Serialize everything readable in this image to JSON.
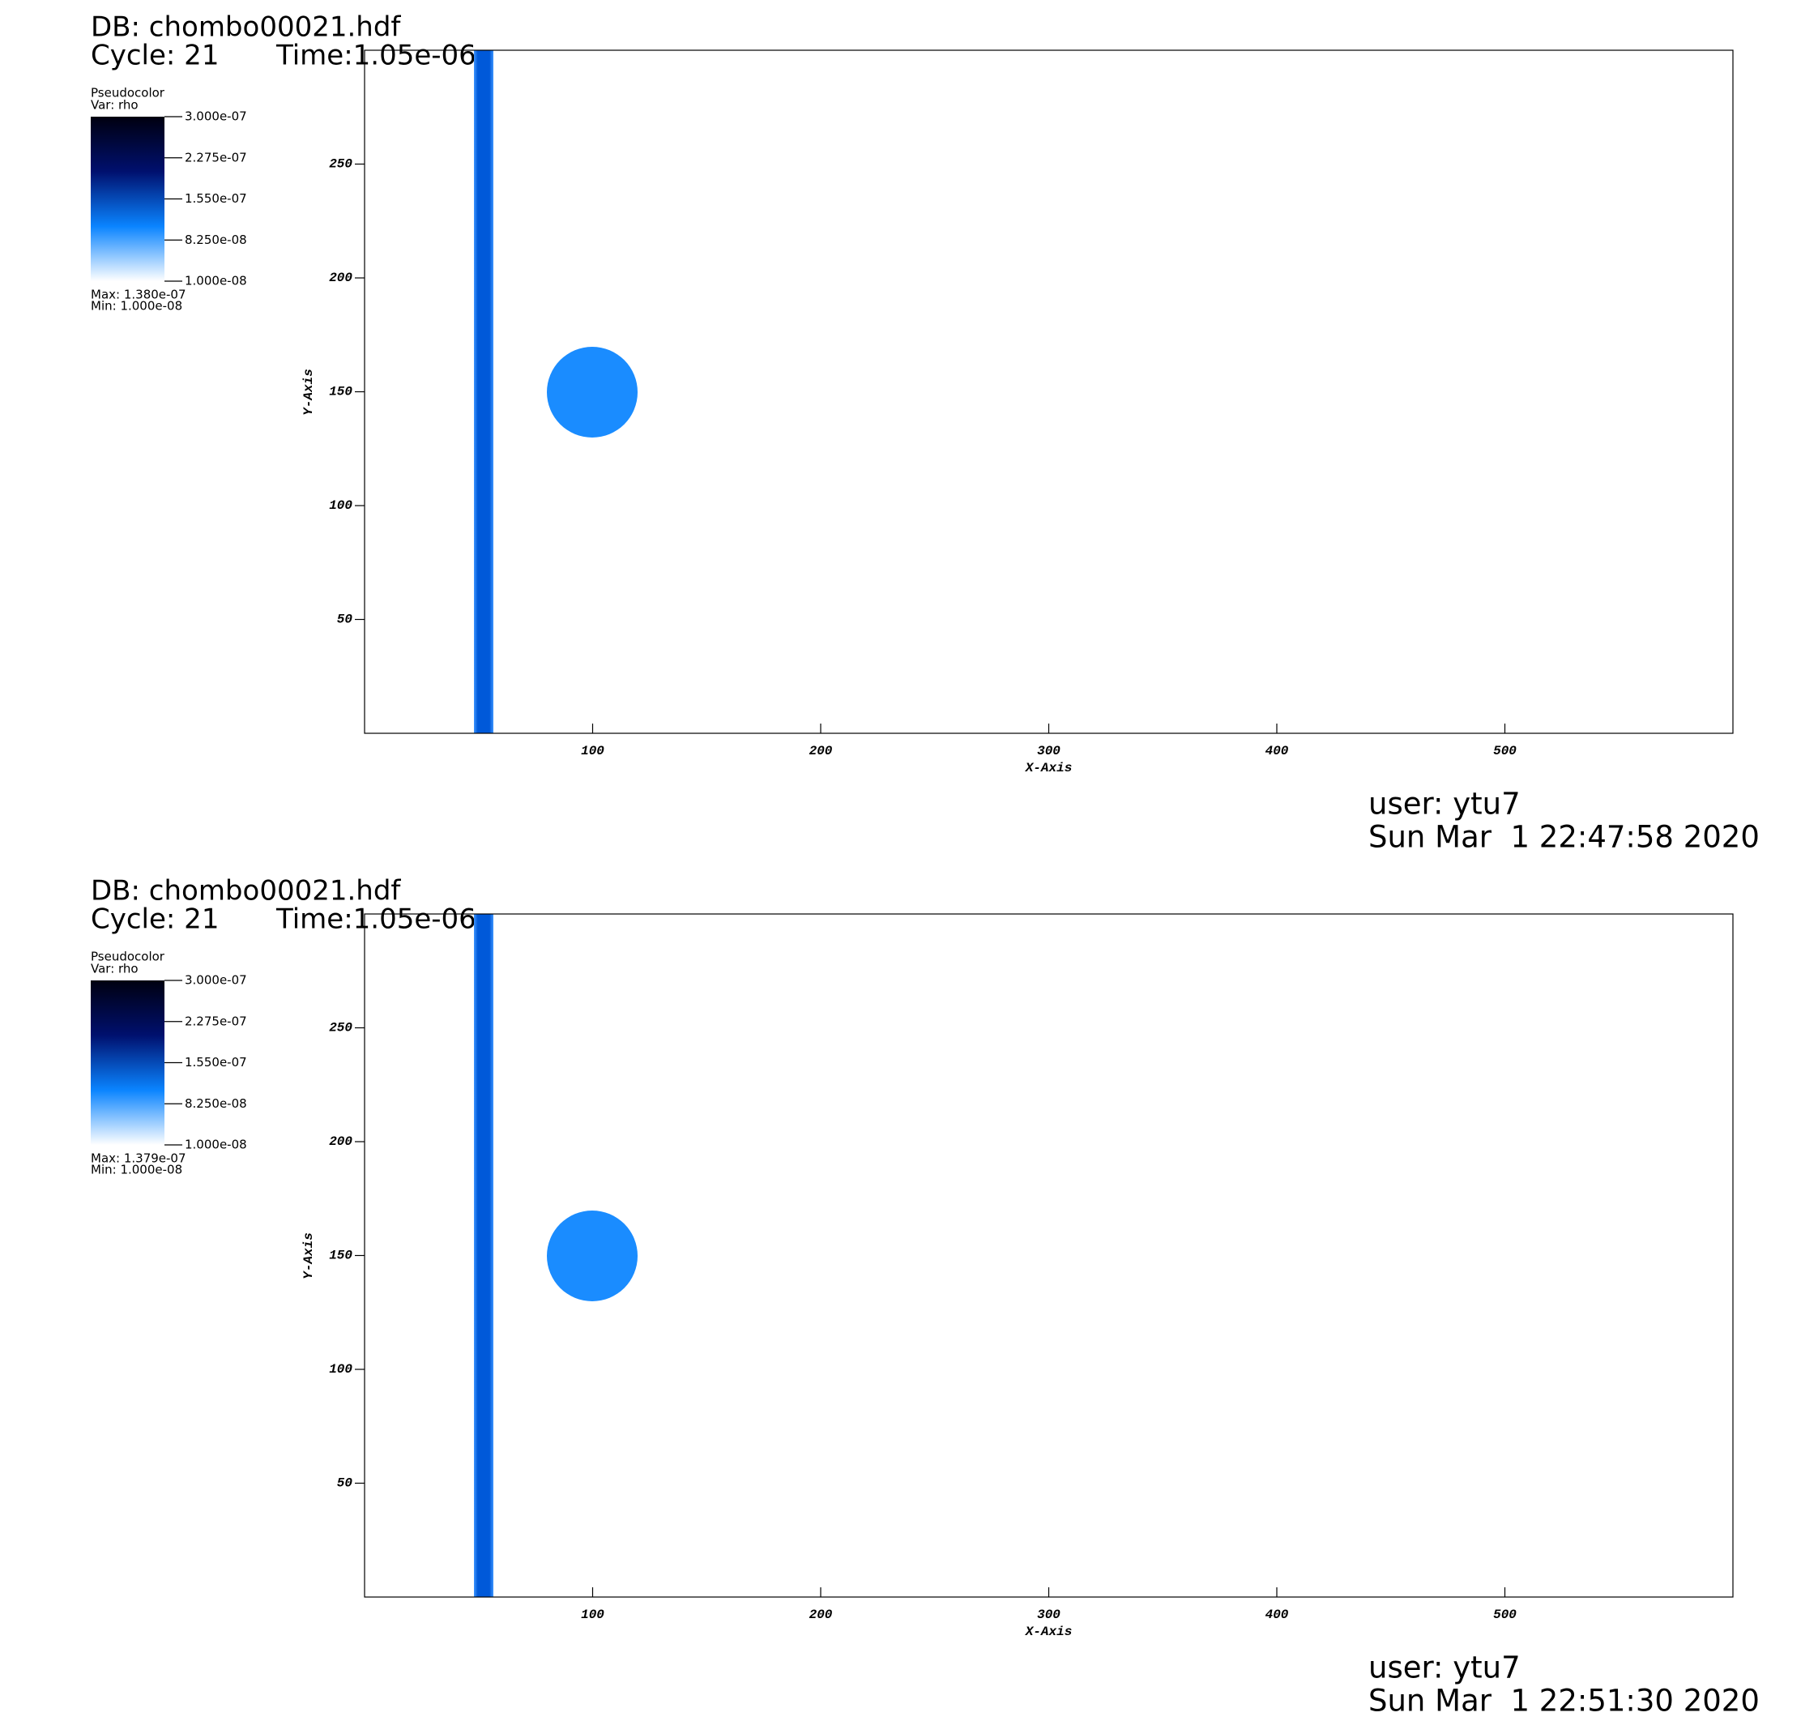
{
  "chart_data": [
    {
      "type": "pseudocolor",
      "db_label": "DB: chombo00021.hdf",
      "cycle_label": "Cycle: 21",
      "time_label": "Time:1.05e-06",
      "plot_label": "Pseudocolor",
      "var_label": "Var: rho",
      "max_label": "Max:  1.380e-07",
      "min_label": "Min:  1.000e-08",
      "clim": [
        1e-08,
        3e-07
      ],
      "colorbar_ticks": [
        {
          "value": 3e-07,
          "label": "3.000e-07"
        },
        {
          "value": 2.275e-07,
          "label": "2.275e-07"
        },
        {
          "value": 1.55e-07,
          "label": "1.550e-07"
        },
        {
          "value": 8.25e-08,
          "label": "8.250e-08"
        },
        {
          "value": 1e-08,
          "label": "1.000e-08"
        }
      ],
      "colormap": [
        "#ffffff",
        "#0a84ff",
        "#00106e",
        "#000010"
      ],
      "xlabel": "X-Axis",
      "ylabel": "Y-Axis",
      "xlim": [
        0,
        600
      ],
      "ylim": [
        0,
        300
      ],
      "xticks": [
        100,
        200,
        300,
        400,
        500
      ],
      "yticks": [
        50,
        100,
        150,
        200,
        250
      ],
      "user_label": "user: ytu7",
      "date_label": "Sun Mar  1 22:47:58 2020"
    },
    {
      "type": "pseudocolor",
      "db_label": "DB: chombo00021.hdf",
      "cycle_label": "Cycle: 21",
      "time_label": "Time:1.05e-06",
      "plot_label": "Pseudocolor",
      "var_label": "Var: rho",
      "max_label": "Max:  1.379e-07",
      "min_label": "Min:  1.000e-08",
      "clim": [
        1e-08,
        3e-07
      ],
      "colorbar_ticks": [
        {
          "value": 3e-07,
          "label": "3.000e-07"
        },
        {
          "value": 2.275e-07,
          "label": "2.275e-07"
        },
        {
          "value": 1.55e-07,
          "label": "1.550e-07"
        },
        {
          "value": 8.25e-08,
          "label": "8.250e-08"
        },
        {
          "value": 1e-08,
          "label": "1.000e-08"
        }
      ],
      "colormap": [
        "#ffffff",
        "#0a84ff",
        "#00106e",
        "#000010"
      ],
      "xlabel": "X-Axis",
      "ylabel": "Y-Axis",
      "xlim": [
        0,
        600
      ],
      "ylim": [
        0,
        300
      ],
      "xticks": [
        100,
        200,
        300,
        400,
        500
      ],
      "yticks": [
        50,
        100,
        150,
        200,
        250
      ],
      "user_label": "user: ytu7",
      "date_label": "Sun Mar  1 22:51:30 2020"
    }
  ]
}
